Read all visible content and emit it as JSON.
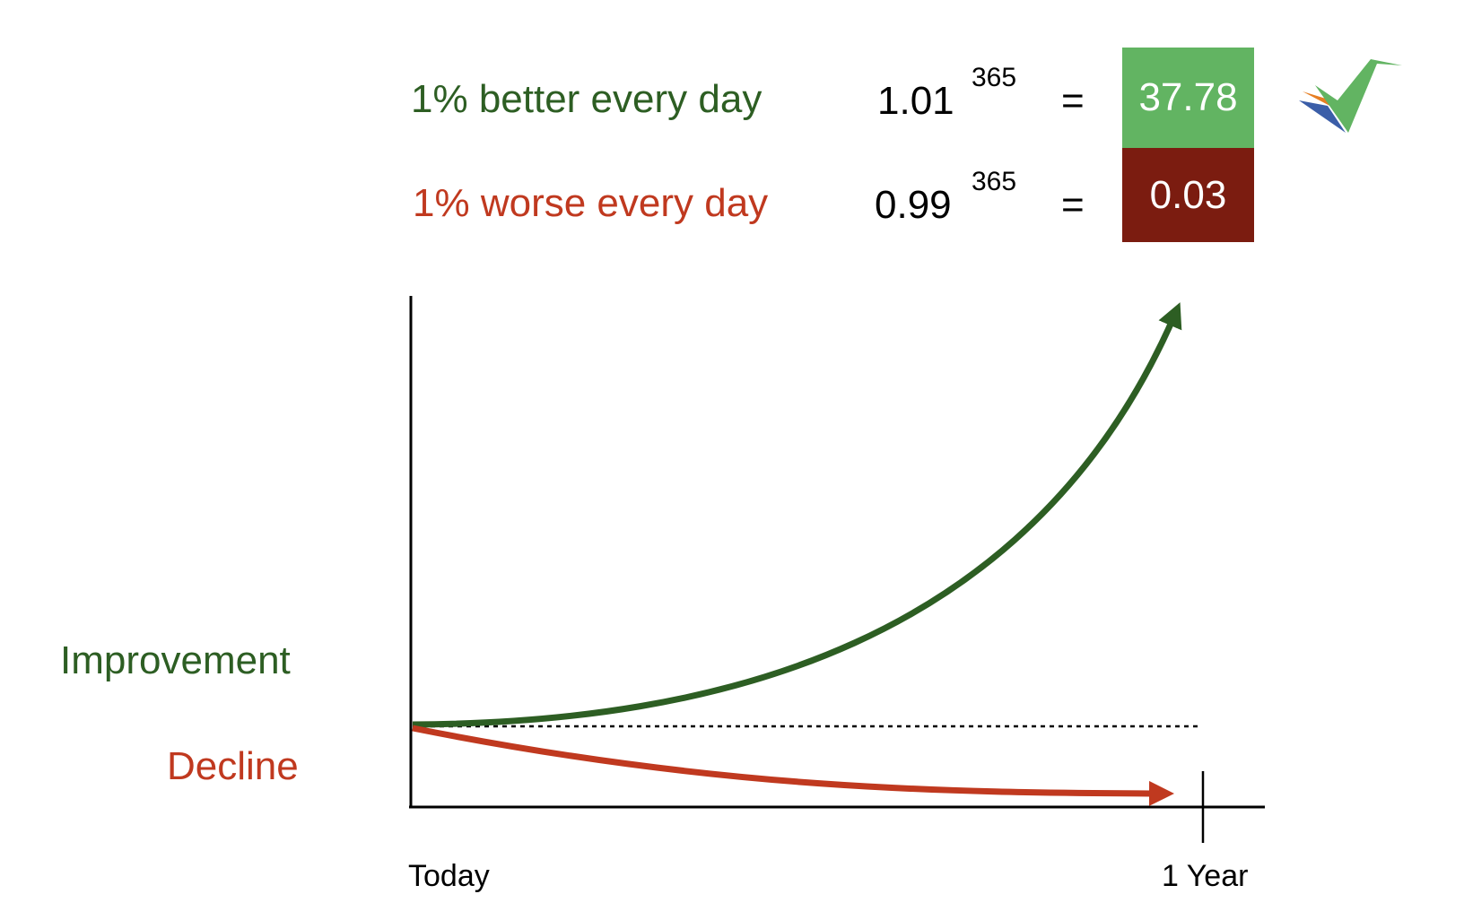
{
  "rows": [
    {
      "label": "1% better every day",
      "base": "1.01",
      "exponent": "365",
      "equals": "=",
      "result": "37.78",
      "label_color": "#2d5e23",
      "box_color": "#62b462"
    },
    {
      "label": "1% worse every day",
      "base": "0.99",
      "exponent": "365",
      "equals": "=",
      "result": "0.03",
      "label_color": "#c0391f",
      "box_color": "#7b1c10"
    }
  ],
  "legend": {
    "improvement": "Improvement",
    "decline": "Decline"
  },
  "axis": {
    "start": "Today",
    "end": "1 Year"
  },
  "colors": {
    "improvement_curve": "#2d5e23",
    "decline_curve": "#c0391f",
    "axis": "#000000"
  },
  "logo": {
    "icon": "checkmark-logo",
    "colors": [
      "#62b462",
      "#3b5ea8",
      "#e67e22"
    ]
  }
}
